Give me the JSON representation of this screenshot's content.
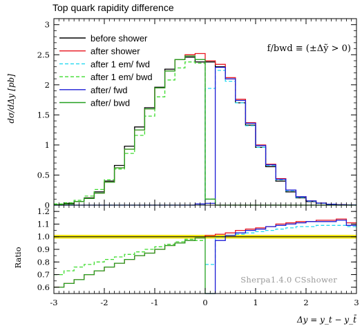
{
  "chart_data": [
    {
      "type": "line",
      "title": "Top quark rapidity difference",
      "xlabel": "Δy = y_t − y_t̄",
      "ylabel": "dσ/dΔy  [pb]",
      "xlim": [
        -3,
        3
      ],
      "ylim": [
        0,
        3.1
      ],
      "xticks": [
        "-3",
        "-2",
        "-1",
        "0",
        "1",
        "2",
        "3"
      ],
      "yticks": [
        "0",
        "0.5",
        "1",
        "1.5",
        "2",
        "2.5",
        "3"
      ],
      "annotation": "f/bwd ≡ (±Δỹ > 0)",
      "legend_position": "top-left",
      "bin_edges": [
        -3.0,
        -2.8,
        -2.6,
        -2.4,
        -2.2,
        -2.0,
        -1.8,
        -1.6,
        -1.4,
        -1.2,
        -1.0,
        -0.8,
        -0.6,
        -0.4,
        -0.2,
        0.0,
        0.2,
        0.4,
        0.6,
        0.8,
        1.0,
        1.2,
        1.4,
        1.6,
        1.8,
        2.0,
        2.2,
        2.4,
        2.6,
        2.8,
        3.0
      ],
      "series": [
        {
          "name": "before shower",
          "color": "#000000",
          "dash": "solid",
          "values": [
            0.01,
            0.03,
            0.06,
            0.12,
            0.22,
            0.4,
            0.66,
            0.98,
            1.3,
            1.62,
            1.96,
            2.26,
            2.42,
            2.46,
            2.38,
            2.38,
            2.3,
            2.1,
            1.7,
            1.33,
            0.96,
            0.64,
            0.4,
            0.22,
            0.12,
            0.06,
            0.03,
            0.015,
            0.006,
            0.002
          ]
        },
        {
          "name": "after shower",
          "color": "#e8141e",
          "dash": "solid",
          "values": [
            0.01,
            0.02,
            0.06,
            0.11,
            0.2,
            0.38,
            0.62,
            0.93,
            1.25,
            1.6,
            1.95,
            2.23,
            2.42,
            2.5,
            2.52,
            2.4,
            2.34,
            2.12,
            1.76,
            1.37,
            1.0,
            0.68,
            0.44,
            0.25,
            0.14,
            0.07,
            0.035,
            0.016,
            0.007,
            0.002
          ]
        },
        {
          "name": "after 1 em/ fwd",
          "color": "#22d7f0",
          "dash": "dashed",
          "values": [
            0,
            0,
            0,
            0,
            0,
            0,
            0,
            0,
            0,
            0,
            0,
            0,
            0,
            0,
            0,
            1.94,
            2.24,
            2.06,
            1.7,
            1.32,
            0.96,
            0.66,
            0.42,
            0.24,
            0.13,
            0.065,
            0.032,
            0.015,
            0.006,
            0.002
          ]
        },
        {
          "name": "after 1 em/ bwd",
          "color": "#3ddc2e",
          "dash": "dashed",
          "values": [
            0.02,
            0.04,
            0.08,
            0.15,
            0.26,
            0.42,
            0.6,
            0.86,
            1.16,
            1.48,
            1.8,
            2.08,
            2.28,
            2.38,
            2.36,
            0.1,
            0,
            0,
            0,
            0,
            0,
            0,
            0,
            0,
            0,
            0,
            0,
            0,
            0,
            0
          ]
        },
        {
          "name": "after/ fwd",
          "color": "#1b1bd6",
          "dash": "solid",
          "values": [
            0,
            0,
            0,
            0,
            0,
            0,
            0,
            0,
            0,
            0,
            0,
            0,
            0,
            0,
            0.02,
            0.03,
            2.29,
            2.1,
            1.74,
            1.36,
            0.99,
            0.67,
            0.43,
            0.25,
            0.14,
            0.07,
            0.034,
            0.016,
            0.007,
            0.002
          ]
        },
        {
          "name": "after/ bwd",
          "color": "#23a01f",
          "dash": "solid",
          "values": [
            0.01,
            0.02,
            0.06,
            0.11,
            0.2,
            0.38,
            0.62,
            0.93,
            1.25,
            1.6,
            1.95,
            2.23,
            2.42,
            2.48,
            2.42,
            0.1,
            0,
            0,
            0,
            0,
            0,
            0,
            0,
            0,
            0,
            0,
            0,
            0,
            0,
            0
          ]
        }
      ]
    },
    {
      "type": "line",
      "ylabel": "Ratio",
      "xlabel": "Δy = y_t − y_t̄",
      "xlim": [
        -3,
        3
      ],
      "ylim": [
        0.55,
        1.25
      ],
      "xticks": [
        "-3",
        "-2",
        "-1",
        "0",
        "1",
        "2",
        "3"
      ],
      "yticks": [
        "0.6",
        "0.7",
        "0.8",
        "0.9",
        "1.0",
        "1.1",
        "1.2"
      ],
      "watermark": "Sherpa1.4.0 CSshower",
      "reference_line": {
        "value": 1.0,
        "band": [
          0.985,
          1.015
        ],
        "band_color": "#f2e600"
      },
      "bin_edges": [
        -3.0,
        -2.8,
        -2.6,
        -2.4,
        -2.2,
        -2.0,
        -1.8,
        -1.6,
        -1.4,
        -1.2,
        -1.0,
        -0.8,
        -0.6,
        -0.4,
        -0.2,
        0.0,
        0.2,
        0.4,
        0.6,
        0.8,
        1.0,
        1.2,
        1.4,
        1.6,
        1.8,
        2.0,
        2.2,
        2.4,
        2.6,
        2.8,
        3.0
      ],
      "series": [
        {
          "name": "after shower",
          "color": "#e8141e",
          "dash": "solid",
          "values": [
            0.6,
            0.63,
            0.66,
            0.7,
            0.73,
            0.76,
            0.79,
            0.82,
            0.85,
            0.87,
            0.9,
            0.93,
            0.95,
            0.97,
            0.99,
            1.01,
            1.02,
            1.03,
            1.05,
            1.06,
            1.07,
            1.08,
            1.1,
            1.11,
            1.12,
            1.12,
            1.13,
            1.13,
            1.14,
            1.11
          ]
        },
        {
          "name": "after 1 em/ fwd",
          "color": "#22d7f0",
          "dash": "dashed",
          "values": [
            null,
            null,
            null,
            null,
            null,
            null,
            null,
            null,
            null,
            null,
            null,
            null,
            null,
            null,
            null,
            0.78,
            1.0,
            1.01,
            1.02,
            1.03,
            1.04,
            1.05,
            1.06,
            1.07,
            1.08,
            1.08,
            1.09,
            1.09,
            1.09,
            1.08
          ]
        },
        {
          "name": "after 1 em/ bwd",
          "color": "#3ddc2e",
          "dash": "dashed",
          "values": [
            0.7,
            0.73,
            0.76,
            0.78,
            0.8,
            0.82,
            0.84,
            0.86,
            0.88,
            0.9,
            0.92,
            0.94,
            0.96,
            0.98,
            0.97,
            null,
            null,
            null,
            null,
            null,
            null,
            null,
            null,
            null,
            null,
            null,
            null,
            null,
            null,
            null
          ]
        },
        {
          "name": "after/ fwd",
          "color": "#1b1bd6",
          "dash": "solid",
          "values": [
            null,
            null,
            null,
            null,
            null,
            null,
            null,
            null,
            null,
            null,
            null,
            null,
            null,
            null,
            null,
            0.55,
            0.97,
            1.01,
            1.03,
            1.05,
            1.06,
            1.08,
            1.09,
            1.1,
            1.11,
            1.12,
            1.12,
            1.12,
            1.13,
            1.09
          ]
        },
        {
          "name": "after/ bwd",
          "color": "#23a01f",
          "dash": "solid",
          "values": [
            0.6,
            0.63,
            0.66,
            0.7,
            0.73,
            0.76,
            0.79,
            0.82,
            0.85,
            0.87,
            0.9,
            0.93,
            0.95,
            0.97,
            0.99,
            0.55,
            null,
            null,
            null,
            null,
            null,
            null,
            null,
            null,
            null,
            null,
            null,
            null,
            null,
            null
          ]
        }
      ]
    }
  ]
}
